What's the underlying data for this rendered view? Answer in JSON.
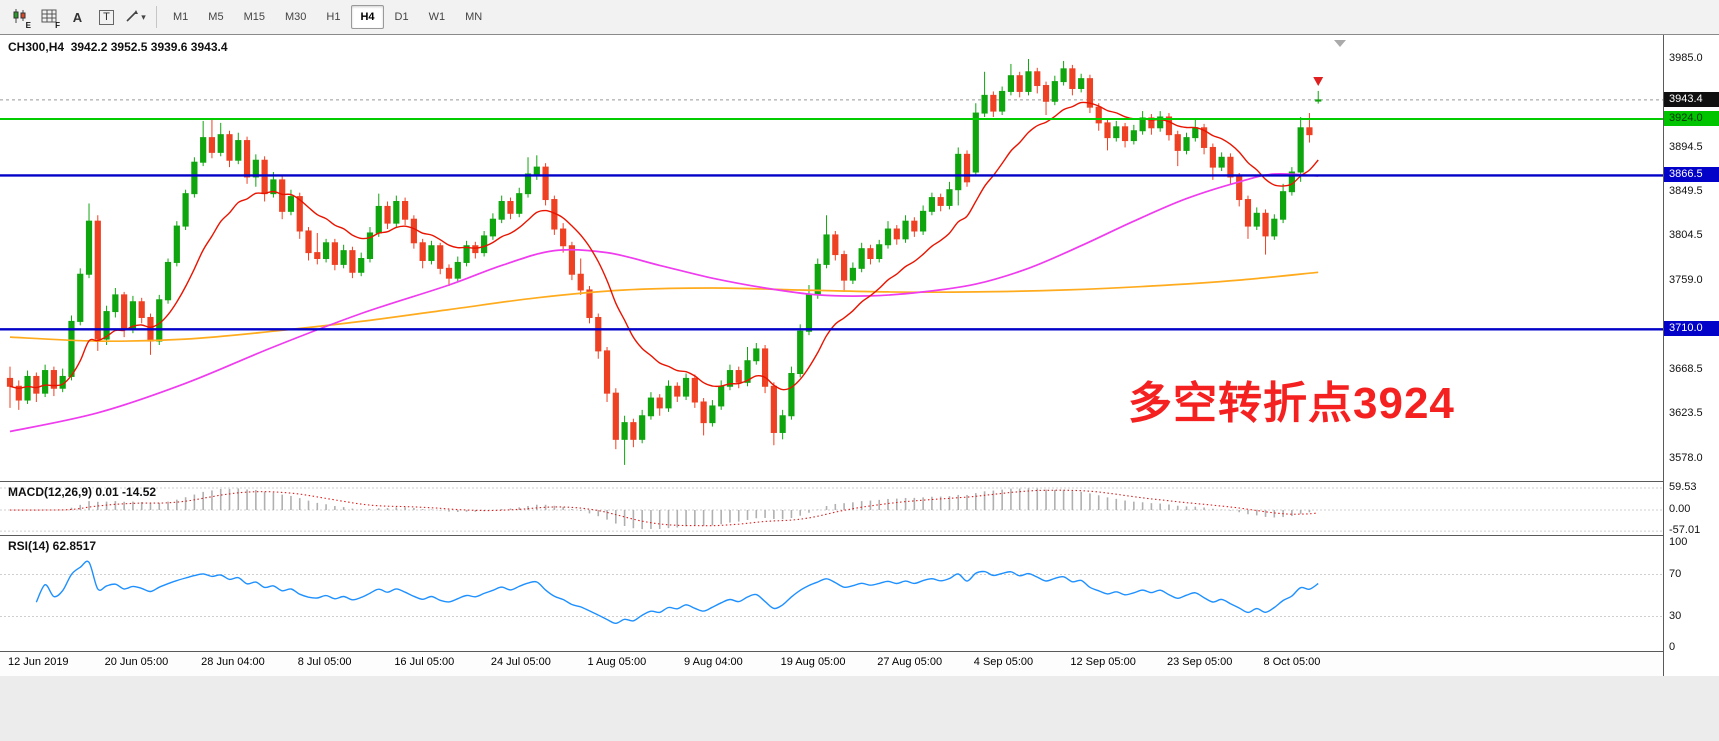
{
  "toolbar": {
    "tools": [
      {
        "icon": "candlestick-chart",
        "sub": "E"
      },
      {
        "icon": "indicator-grid",
        "sub": "F"
      },
      {
        "icon": "text",
        "label": "A"
      },
      {
        "icon": "text-box",
        "label": "T"
      },
      {
        "icon": "draw-tools",
        "caret": "▾"
      }
    ],
    "timeframes": [
      {
        "label": "M1"
      },
      {
        "label": "M5"
      },
      {
        "label": "M15"
      },
      {
        "label": "M30"
      },
      {
        "label": "H1"
      },
      {
        "label": "H4",
        "active": true
      },
      {
        "label": "D1"
      },
      {
        "label": "W1"
      },
      {
        "label": "MN"
      }
    ]
  },
  "chart": {
    "title": "CH300,H4  3942.2 3952.5 3939.6 3943.4",
    "annotation": {
      "text": "多空转折点3924",
      "color": "#f52121"
    }
  },
  "indicators": {
    "macd": {
      "label_full": "MACD(12,26,9) 0.01 -14.52",
      "fast": 12,
      "slow": 26,
      "signal": 9,
      "ticks": [
        {
          "v": 59.53,
          "text": "59.53"
        },
        {
          "v": 0,
          "text": "0.00"
        },
        {
          "v": -57.01,
          "text": "-57.01"
        }
      ]
    },
    "rsi": {
      "label_full": "RSI(14) 62.8517",
      "period": 14,
      "ticks": [
        {
          "v": 100,
          "text": "100"
        },
        {
          "v": 70,
          "text": "70"
        },
        {
          "v": 30,
          "text": "30"
        },
        {
          "v": 0,
          "text": "0"
        }
      ],
      "levels": [
        70,
        30
      ]
    }
  },
  "chart_data": {
    "type": "candlestick",
    "symbol": "CH300",
    "timeframe": "H4",
    "ohlc_display": {
      "open": "3942.2",
      "high": "3952.5",
      "low": "3939.6",
      "close": "3943.4"
    },
    "current_price": 3943.4,
    "ylim": [
      3578.0,
      3985.0
    ],
    "price_ticks": [
      3985.0,
      3894.5,
      3849.5,
      3804.5,
      3759.0,
      3668.5,
      3623.5,
      3578.0
    ],
    "badges": [
      {
        "price": 3943.4,
        "text": "3943.4",
        "bg": "#101010",
        "fg": "#ffffff"
      },
      {
        "price": 3924.0,
        "text": "3924.0",
        "bg": "#00c400",
        "fg": "#003300"
      },
      {
        "price": 3866.5,
        "text": "3866.5",
        "bg": "#0202c8",
        "fg": "#ffffff"
      },
      {
        "price": 3710.0,
        "text": "3710.0",
        "bg": "#0202c8",
        "fg": "#ffffff"
      }
    ],
    "hlines": [
      {
        "price": 3924.0,
        "color": "#00cc00",
        "width": 2
      },
      {
        "price": 3866.5,
        "color": "#0202c8",
        "width": 2.4
      },
      {
        "price": 3710.0,
        "color": "#0202c8",
        "width": 2.4
      }
    ],
    "colors": {
      "up": "#0fa50f",
      "down": "#ee4023",
      "ma_fast": "#e81400",
      "ma_mid": "#ee3cee",
      "ma_slow": "#ffab1e",
      "rsi_line": "#1E90FF",
      "macd_hist": "#b0b0b0",
      "macd_signal": "#d82222"
    },
    "ma_fast_period": 13,
    "ma_mid_points": [
      [
        0,
        3606
      ],
      [
        10,
        3625
      ],
      [
        20,
        3655
      ],
      [
        30,
        3692
      ],
      [
        40,
        3726
      ],
      [
        50,
        3755
      ],
      [
        56,
        3775
      ],
      [
        62,
        3790
      ],
      [
        68,
        3788
      ],
      [
        74,
        3775
      ],
      [
        80,
        3762
      ],
      [
        86,
        3752
      ],
      [
        92,
        3745
      ],
      [
        98,
        3744
      ],
      [
        104,
        3748
      ],
      [
        110,
        3756
      ],
      [
        116,
        3772
      ],
      [
        122,
        3795
      ],
      [
        128,
        3820
      ],
      [
        134,
        3843
      ],
      [
        140,
        3860
      ],
      [
        144,
        3868
      ],
      [
        149,
        3866
      ]
    ],
    "ma_slow_points": [
      [
        0,
        3702
      ],
      [
        10,
        3698
      ],
      [
        20,
        3700
      ],
      [
        30,
        3708
      ],
      [
        40,
        3718
      ],
      [
        50,
        3730
      ],
      [
        60,
        3742
      ],
      [
        70,
        3750
      ],
      [
        80,
        3752
      ],
      [
        90,
        3750
      ],
      [
        100,
        3748
      ],
      [
        110,
        3748
      ],
      [
        120,
        3750
      ],
      [
        130,
        3754
      ],
      [
        140,
        3760
      ],
      [
        149,
        3768
      ]
    ],
    "time_labels": [
      {
        "bar": 0,
        "text": "12 Jun 2019"
      },
      {
        "bar": 11,
        "text": "20 Jun 05:00"
      },
      {
        "bar": 22,
        "text": "28 Jun 04:00"
      },
      {
        "bar": 33,
        "text": "8 Jul 05:00"
      },
      {
        "bar": 44,
        "text": "16 Jul 05:00"
      },
      {
        "bar": 55,
        "text": "24 Jul 05:00"
      },
      {
        "bar": 66,
        "text": "1 Aug 05:00"
      },
      {
        "bar": 77,
        "text": "9 Aug 04:00"
      },
      {
        "bar": 88,
        "text": "19 Aug 05:00"
      },
      {
        "bar": 99,
        "text": "27 Aug 05:00"
      },
      {
        "bar": 110,
        "text": "4 Sep 05:00"
      },
      {
        "bar": 121,
        "text": "12 Sep 05:00"
      },
      {
        "bar": 132,
        "text": "23 Sep 05:00"
      },
      {
        "bar": 143,
        "text": "8 Oct 05:00"
      }
    ],
    "candles": [
      [
        3660,
        3672,
        3630,
        3652
      ],
      [
        3652,
        3658,
        3628,
        3638
      ],
      [
        3638,
        3668,
        3634,
        3662
      ],
      [
        3662,
        3666,
        3636,
        3645
      ],
      [
        3645,
        3674,
        3641,
        3668
      ],
      [
        3668,
        3672,
        3642,
        3650
      ],
      [
        3650,
        3670,
        3646,
        3662
      ],
      [
        3662,
        3724,
        3658,
        3718
      ],
      [
        3718,
        3772,
        3714,
        3766
      ],
      [
        3766,
        3838,
        3762,
        3820
      ],
      [
        3820,
        3826,
        3688,
        3700
      ],
      [
        3700,
        3734,
        3694,
        3728
      ],
      [
        3728,
        3752,
        3722,
        3745
      ],
      [
        3745,
        3748,
        3702,
        3710
      ],
      [
        3710,
        3744,
        3706,
        3738
      ],
      [
        3738,
        3742,
        3716,
        3722
      ],
      [
        3722,
        3726,
        3684,
        3698
      ],
      [
        3698,
        3745,
        3694,
        3740
      ],
      [
        3740,
        3782,
        3736,
        3778
      ],
      [
        3778,
        3820,
        3774,
        3815
      ],
      [
        3815,
        3852,
        3811,
        3848
      ],
      [
        3848,
        3885,
        3844,
        3880
      ],
      [
        3880,
        3922,
        3876,
        3905
      ],
      [
        3905,
        3925,
        3884,
        3890
      ],
      [
        3890,
        3920,
        3886,
        3908
      ],
      [
        3908,
        3912,
        3875,
        3882
      ],
      [
        3882,
        3910,
        3878,
        3902
      ],
      [
        3902,
        3906,
        3858,
        3865
      ],
      [
        3865,
        3888,
        3855,
        3882
      ],
      [
        3882,
        3886,
        3840,
        3848
      ],
      [
        3848,
        3870,
        3844,
        3862
      ],
      [
        3862,
        3866,
        3822,
        3830
      ],
      [
        3830,
        3852,
        3826,
        3845
      ],
      [
        3845,
        3849,
        3802,
        3810
      ],
      [
        3810,
        3814,
        3780,
        3788
      ],
      [
        3788,
        3808,
        3776,
        3782
      ],
      [
        3782,
        3802,
        3778,
        3798
      ],
      [
        3798,
        3802,
        3770,
        3776
      ],
      [
        3776,
        3796,
        3772,
        3790
      ],
      [
        3790,
        3794,
        3762,
        3768
      ],
      [
        3768,
        3788,
        3764,
        3782
      ],
      [
        3782,
        3814,
        3778,
        3808
      ],
      [
        3808,
        3848,
        3804,
        3835
      ],
      [
        3835,
        3840,
        3812,
        3818
      ],
      [
        3818,
        3846,
        3814,
        3840
      ],
      [
        3840,
        3844,
        3816,
        3822
      ],
      [
        3822,
        3826,
        3792,
        3798
      ],
      [
        3798,
        3802,
        3772,
        3780
      ],
      [
        3780,
        3800,
        3776,
        3795
      ],
      [
        3795,
        3798,
        3766,
        3772
      ],
      [
        3772,
        3776,
        3754,
        3762
      ],
      [
        3762,
        3784,
        3758,
        3778
      ],
      [
        3778,
        3800,
        3774,
        3795
      ],
      [
        3795,
        3799,
        3782,
        3788
      ],
      [
        3788,
        3810,
        3784,
        3805
      ],
      [
        3805,
        3828,
        3801,
        3822
      ],
      [
        3822,
        3846,
        3818,
        3840
      ],
      [
        3840,
        3844,
        3822,
        3828
      ],
      [
        3828,
        3854,
        3824,
        3848
      ],
      [
        3848,
        3885,
        3844,
        3868
      ],
      [
        3868,
        3887,
        3862,
        3875
      ],
      [
        3875,
        3879,
        3836,
        3842
      ],
      [
        3842,
        3846,
        3806,
        3812
      ],
      [
        3812,
        3818,
        3788,
        3795
      ],
      [
        3795,
        3799,
        3760,
        3766
      ],
      [
        3766,
        3782,
        3745,
        3750
      ],
      [
        3750,
        3754,
        3716,
        3722
      ],
      [
        3722,
        3726,
        3680,
        3688
      ],
      [
        3688,
        3692,
        3636,
        3645
      ],
      [
        3645,
        3650,
        3588,
        3598
      ],
      [
        3598,
        3622,
        3572,
        3615
      ],
      [
        3615,
        3619,
        3590,
        3598
      ],
      [
        3598,
        3628,
        3594,
        3622
      ],
      [
        3622,
        3646,
        3618,
        3640
      ],
      [
        3640,
        3644,
        3622,
        3630
      ],
      [
        3630,
        3658,
        3626,
        3652
      ],
      [
        3652,
        3656,
        3636,
        3642
      ],
      [
        3642,
        3665,
        3638,
        3660
      ],
      [
        3660,
        3664,
        3630,
        3636
      ],
      [
        3636,
        3640,
        3602,
        3615
      ],
      [
        3615,
        3638,
        3611,
        3632
      ],
      [
        3632,
        3658,
        3628,
        3652
      ],
      [
        3652,
        3674,
        3648,
        3668
      ],
      [
        3668,
        3672,
        3650,
        3656
      ],
      [
        3656,
        3692,
        3652,
        3678
      ],
      [
        3678,
        3696,
        3674,
        3690
      ],
      [
        3690,
        3694,
        3645,
        3652
      ],
      [
        3652,
        3656,
        3592,
        3605
      ],
      [
        3605,
        3628,
        3598,
        3622
      ],
      [
        3622,
        3672,
        3618,
        3665
      ],
      [
        3665,
        3715,
        3661,
        3708
      ],
      [
        3708,
        3755,
        3704,
        3745
      ],
      [
        3745,
        3782,
        3741,
        3776
      ],
      [
        3776,
        3826,
        3772,
        3806
      ],
      [
        3806,
        3810,
        3780,
        3786
      ],
      [
        3786,
        3790,
        3748,
        3760
      ],
      [
        3760,
        3778,
        3756,
        3772
      ],
      [
        3772,
        3798,
        3768,
        3792
      ],
      [
        3792,
        3796,
        3776,
        3782
      ],
      [
        3782,
        3801,
        3778,
        3796
      ],
      [
        3796,
        3820,
        3792,
        3812
      ],
      [
        3812,
        3816,
        3796,
        3802
      ],
      [
        3802,
        3826,
        3798,
        3820
      ],
      [
        3820,
        3824,
        3804,
        3810
      ],
      [
        3810,
        3836,
        3806,
        3830
      ],
      [
        3830,
        3849,
        3826,
        3844
      ],
      [
        3844,
        3848,
        3830,
        3836
      ],
      [
        3836,
        3860,
        3832,
        3852
      ],
      [
        3852,
        3895,
        3836,
        3888
      ],
      [
        3888,
        3892,
        3855,
        3860
      ],
      [
        3870,
        3940,
        3866,
        3930
      ],
      [
        3930,
        3972,
        3926,
        3948
      ],
      [
        3948,
        3952,
        3926,
        3932
      ],
      [
        3932,
        3957,
        3928,
        3952
      ],
      [
        3952,
        3980,
        3948,
        3968
      ],
      [
        3968,
        3972,
        3946,
        3952
      ],
      [
        3952,
        3985,
        3948,
        3972
      ],
      [
        3972,
        3976,
        3950,
        3958
      ],
      [
        3958,
        3962,
        3928,
        3942
      ],
      [
        3942,
        3968,
        3938,
        3962
      ],
      [
        3962,
        3983,
        3958,
        3975
      ],
      [
        3975,
        3979,
        3948,
        3955
      ],
      [
        3955,
        3970,
        3951,
        3965
      ],
      [
        3965,
        3969,
        3930,
        3936
      ],
      [
        3936,
        3940,
        3912,
        3920
      ],
      [
        3920,
        3924,
        3892,
        3905
      ],
      [
        3905,
        3922,
        3901,
        3916
      ],
      [
        3916,
        3920,
        3895,
        3902
      ],
      [
        3902,
        3918,
        3898,
        3912
      ],
      [
        3912,
        3932,
        3908,
        3925
      ],
      [
        3925,
        3929,
        3908,
        3915
      ],
      [
        3915,
        3932,
        3911,
        3926
      ],
      [
        3926,
        3930,
        3902,
        3908
      ],
      [
        3908,
        3912,
        3876,
        3892
      ],
      [
        3892,
        3910,
        3888,
        3905
      ],
      [
        3905,
        3925,
        3901,
        3915
      ],
      [
        3915,
        3919,
        3888,
        3895
      ],
      [
        3895,
        3899,
        3862,
        3875
      ],
      [
        3875,
        3890,
        3871,
        3885
      ],
      [
        3885,
        3889,
        3858,
        3865
      ],
      [
        3865,
        3869,
        3835,
        3842
      ],
      [
        3842,
        3846,
        3802,
        3815
      ],
      [
        3815,
        3834,
        3811,
        3828
      ],
      [
        3828,
        3832,
        3786,
        3805
      ],
      [
        3805,
        3827,
        3801,
        3822
      ],
      [
        3822,
        3858,
        3818,
        3850
      ],
      [
        3850,
        3875,
        3846,
        3870
      ],
      [
        3870,
        3926,
        3860,
        3915
      ],
      [
        3915,
        3930,
        3900,
        3908
      ],
      [
        3942.2,
        3952.5,
        3939.6,
        3943.4
      ]
    ]
  }
}
